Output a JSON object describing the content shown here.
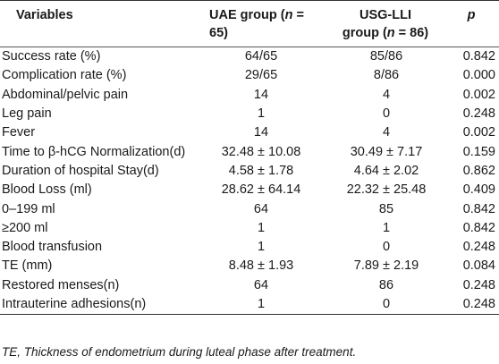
{
  "headers": {
    "variables": "Variables",
    "uae_prefix": "UAE group (",
    "uae_n": "n",
    "uae_suffix": " = 65)",
    "usg_line1": "USG-LLI",
    "usg_prefix": "group (",
    "usg_n": "n",
    "usg_suffix": " = 86)",
    "p": "p"
  },
  "rows": [
    {
      "variable": "Success rate (%)",
      "uae": "64/65",
      "usg": "85/86",
      "p": "0.842"
    },
    {
      "variable": "Complication rate (%)",
      "uae": "29/65",
      "usg": "8/86",
      "p": "0.000"
    },
    {
      "variable": "Abdominal/pelvic pain",
      "uae": "14",
      "usg": "4",
      "p": "0.002"
    },
    {
      "variable": "Leg pain",
      "uae": "1",
      "usg": "0",
      "p": "0.248"
    },
    {
      "variable": "Fever",
      "uae": "14",
      "usg": "4",
      "p": "0.002"
    },
    {
      "variable": "Time to β-hCG Normalization(d)",
      "uae": "32.48 ± 10.08",
      "usg": "30.49 ± 7.17",
      "p": "0.159"
    },
    {
      "variable": "Duration of hospital Stay(d)",
      "uae": "4.58 ± 1.78",
      "usg": "4.64 ± 2.02",
      "p": "0.862"
    },
    {
      "variable": "Blood Loss (ml)",
      "uae": "28.62 ± 64.14",
      "usg": "22.32 ± 25.48",
      "p": "0.409"
    },
    {
      "variable": "0–199 ml",
      "uae": "64",
      "usg": "85",
      "p": "0.842"
    },
    {
      "variable": "≥200 ml",
      "uae": "1",
      "usg": "1",
      "p": "0.842"
    },
    {
      "variable": "Blood transfusion",
      "uae": "1",
      "usg": "0",
      "p": "0.248"
    },
    {
      "variable": "TE (mm)",
      "uae": "8.48 ± 1.93",
      "usg": "7.89 ± 2.19",
      "p": "0.084"
    },
    {
      "variable": "Restored menses(n)",
      "uae": "64",
      "usg": "86",
      "p": "0.248"
    },
    {
      "variable": "Intrauterine adhesions(n)",
      "uae": "1",
      "usg": "0",
      "p": "0.248"
    }
  ],
  "footnote": "TE, Thickness of endometrium during luteal phase after treatment."
}
